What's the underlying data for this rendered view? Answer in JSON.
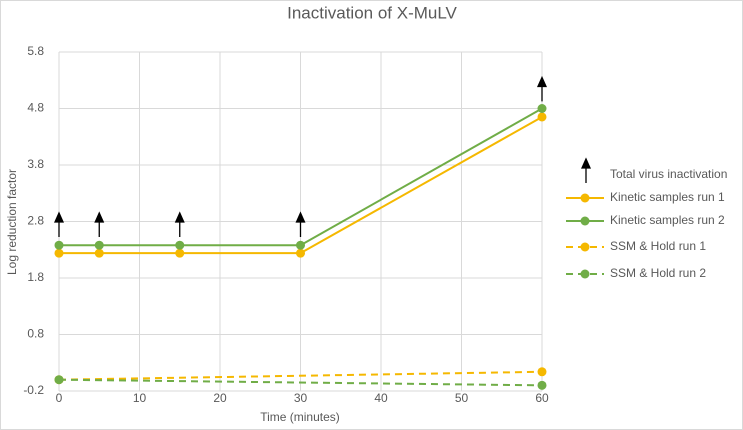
{
  "chart_data": {
    "type": "line",
    "title": "Inactivation of X-MuLV",
    "x_label": "Time (minutes)",
    "y_label": "Log reduction factor",
    "xlim": [
      0,
      60
    ],
    "xticks": [
      0,
      10,
      20,
      30,
      40,
      50,
      60
    ],
    "ylim": [
      -0.2,
      5.8
    ],
    "yticks": [
      -0.2,
      0.8,
      1.8,
      2.8,
      3.8,
      4.8,
      5.8
    ],
    "grid": true,
    "legend": "right",
    "series": [
      {
        "name": "Total virus inactivation",
        "color": "#000000",
        "marker": "arrow",
        "x": [
          0,
          5,
          15,
          30,
          60
        ],
        "values": [
          2.95,
          2.95,
          2.95,
          2.95,
          5.35
        ]
      },
      {
        "name": "Kinetic samples run 1",
        "color": "#f5b800",
        "marker": "circle",
        "x": [
          0,
          5,
          15,
          30,
          60
        ],
        "values": [
          2.24,
          2.24,
          2.24,
          2.24,
          4.65
        ]
      },
      {
        "name": "Kinetic samples run 2",
        "color": "#70ad47",
        "marker": "circle",
        "x": [
          0,
          5,
          15,
          30,
          60
        ],
        "values": [
          2.38,
          2.38,
          2.38,
          2.38,
          4.8
        ]
      },
      {
        "name": "SSM & Hold run 1",
        "color": "#f5b800",
        "marker": "circle",
        "dash": true,
        "x": [
          0,
          60
        ],
        "values": [
          0,
          0.14
        ]
      },
      {
        "name": "SSM & Hold run 2",
        "color": "#70ad47",
        "marker": "circle",
        "dash": true,
        "x": [
          0,
          60
        ],
        "values": [
          0,
          -0.1
        ]
      }
    ]
  }
}
